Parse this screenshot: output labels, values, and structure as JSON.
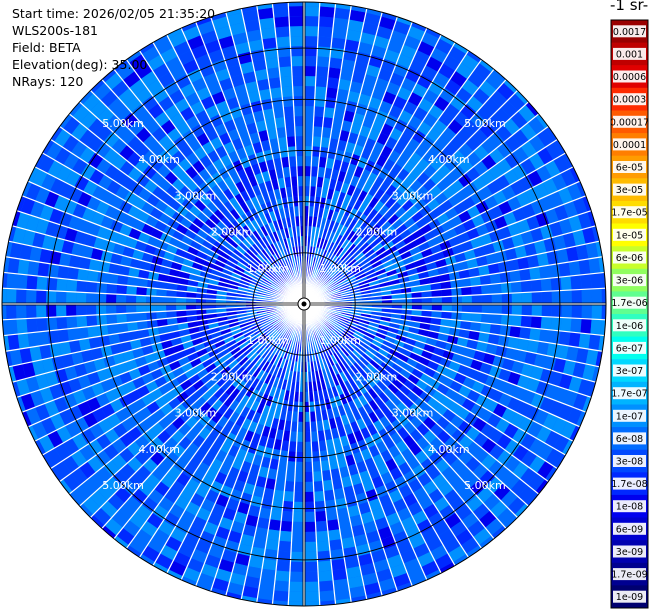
{
  "header": {
    "start_time": "Start time: 2026/02/05 21:35:20",
    "instrument": "WLS200s-181",
    "field": "Field: BETA",
    "elevation": "Elevation(deg): 35.00",
    "nrays": "NRays: 120"
  },
  "colorbar": {
    "title_visible": "-1 sr-",
    "ticks": [
      "0.0017",
      "0.001",
      "0.0006",
      "0.0003",
      "0.00017",
      "0.0001",
      "6e-05",
      "3e-05",
      "1.7e-05",
      "1e-05",
      "6e-06",
      "3e-06",
      "1.7e-06",
      "1e-06",
      "6e-07",
      "3e-07",
      "1.7e-07",
      "1e-07",
      "6e-08",
      "3e-08",
      "1.7e-08",
      "1e-08",
      "6e-09",
      "3e-09",
      "1.7e-09",
      "1e-09"
    ],
    "colors": [
      "#9a0000",
      "#bf0000",
      "#e00000",
      "#ff2a00",
      "#ff5a00",
      "#ff7e00",
      "#ff9c00",
      "#ffbb00",
      "#ffdc00",
      "#ffff00",
      "#c8ff2a",
      "#90ff60",
      "#60ff90",
      "#30ffc0",
      "#00ffee",
      "#00d8ff",
      "#00b4ff",
      "#0090ff",
      "#006cff",
      "#0048ff",
      "#0028ff",
      "#0000ee",
      "#0000d0",
      "#0000b0",
      "#000090",
      "#000070"
    ]
  },
  "chart_data": {
    "type": "heatmap",
    "projection": "PPI polar scan",
    "field": "BETA",
    "elevation_deg": 35.0,
    "n_rays": 120,
    "range_ring_labels": [
      "1.00km",
      "2.00km",
      "3.00km",
      "4.00km",
      "5.00km"
    ],
    "ring_label_positions": [
      "upper-left",
      "upper-right",
      "lower-left",
      "lower-right"
    ],
    "max_range_km": 5.9,
    "dominant_values": [
      "3e-08",
      "6e-08",
      "1e-07"
    ],
    "near_range_values": [
      "1e-08",
      "1.7e-08"
    ],
    "grid": true,
    "colorbar_placement": "right"
  }
}
